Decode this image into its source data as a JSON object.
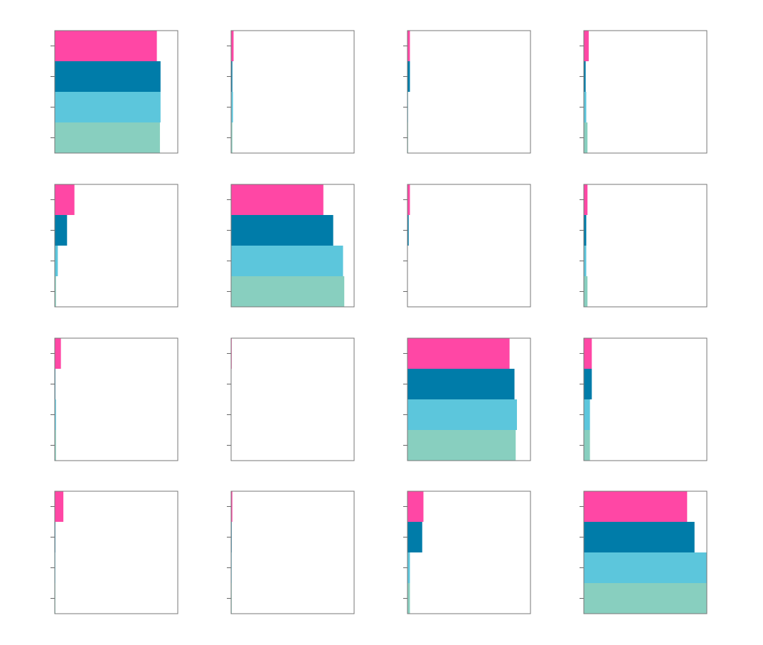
{
  "chart_data": [
    {
      "type": "bar",
      "orientation": "horizontal",
      "categories": [
        null,
        null,
        null,
        null
      ],
      "values": [
        0.83,
        0.86,
        0.86,
        0.855
      ],
      "colors": [
        "#ff47a5",
        "#007ca9",
        "#5cc6dc",
        "#88cfbf"
      ],
      "xlim": [
        0,
        1
      ]
    },
    {
      "type": "bar",
      "orientation": "horizontal",
      "categories": [
        null,
        null,
        null,
        null
      ],
      "values": [
        0.02,
        0.01,
        0.015,
        0.01
      ],
      "colors": [
        "#ff47a5",
        "#007ca9",
        "#5cc6dc",
        "#88cfbf"
      ],
      "xlim": [
        0,
        1
      ]
    },
    {
      "type": "bar",
      "orientation": "horizontal",
      "categories": [
        null,
        null,
        null,
        null
      ],
      "values": [
        0.02,
        0.02,
        0.005,
        0.005
      ],
      "colors": [
        "#ff47a5",
        "#007ca9",
        "#5cc6dc",
        "#88cfbf"
      ],
      "xlim": [
        0,
        1
      ]
    },
    {
      "type": "bar",
      "orientation": "horizontal",
      "categories": [
        null,
        null,
        null,
        null
      ],
      "values": [
        0.04,
        0.015,
        0.02,
        0.03
      ],
      "colors": [
        "#ff47a5",
        "#007ca9",
        "#5cc6dc",
        "#88cfbf"
      ],
      "xlim": [
        0,
        1
      ]
    },
    {
      "type": "bar",
      "orientation": "horizontal",
      "categories": [
        null,
        null,
        null,
        null
      ],
      "values": [
        0.16,
        0.1,
        0.025,
        0.01
      ],
      "colors": [
        "#ff47a5",
        "#007ca9",
        "#5cc6dc",
        "#88cfbf"
      ],
      "xlim": [
        0,
        1
      ]
    },
    {
      "type": "bar",
      "orientation": "horizontal",
      "categories": [
        null,
        null,
        null,
        null
      ],
      "values": [
        0.75,
        0.83,
        0.91,
        0.92
      ],
      "colors": [
        "#ff47a5",
        "#007ca9",
        "#5cc6dc",
        "#88cfbf"
      ],
      "xlim": [
        0,
        1
      ]
    },
    {
      "type": "bar",
      "orientation": "horizontal",
      "categories": [
        null,
        null,
        null,
        null
      ],
      "values": [
        0.02,
        0.01,
        0.002,
        0.002
      ],
      "colors": [
        "#ff47a5",
        "#007ca9",
        "#5cc6dc",
        "#88cfbf"
      ],
      "xlim": [
        0,
        1
      ]
    },
    {
      "type": "bar",
      "orientation": "horizontal",
      "categories": [
        null,
        null,
        null,
        null
      ],
      "values": [
        0.03,
        0.02,
        0.02,
        0.03
      ],
      "colors": [
        "#ff47a5",
        "#007ca9",
        "#5cc6dc",
        "#88cfbf"
      ],
      "xlim": [
        0,
        1
      ]
    },
    {
      "type": "bar",
      "orientation": "horizontal",
      "categories": [
        null,
        null,
        null,
        null
      ],
      "values": [
        0.05,
        0.005,
        0.01,
        0.01
      ],
      "colors": [
        "#ff47a5",
        "#007ca9",
        "#5cc6dc",
        "#88cfbf"
      ],
      "xlim": [
        0,
        1
      ]
    },
    {
      "type": "bar",
      "orientation": "horizontal",
      "categories": [
        null,
        null,
        null,
        null
      ],
      "values": [
        0.005,
        0.003,
        0.003,
        0.003
      ],
      "colors": [
        "#ff47a5",
        "#007ca9",
        "#5cc6dc",
        "#88cfbf"
      ],
      "xlim": [
        0,
        1
      ]
    },
    {
      "type": "bar",
      "orientation": "horizontal",
      "categories": [
        null,
        null,
        null,
        null
      ],
      "values": [
        0.83,
        0.87,
        0.89,
        0.88
      ],
      "colors": [
        "#ff47a5",
        "#007ca9",
        "#5cc6dc",
        "#88cfbf"
      ],
      "xlim": [
        0,
        1
      ]
    },
    {
      "type": "bar",
      "orientation": "horizontal",
      "categories": [
        null,
        null,
        null,
        null
      ],
      "values": [
        0.065,
        0.065,
        0.05,
        0.05
      ],
      "colors": [
        "#ff47a5",
        "#007ca9",
        "#5cc6dc",
        "#88cfbf"
      ],
      "xlim": [
        0,
        1
      ]
    },
    {
      "type": "bar",
      "orientation": "horizontal",
      "categories": [
        null,
        null,
        null,
        null
      ],
      "values": [
        0.07,
        0.005,
        0.005,
        0.005
      ],
      "colors": [
        "#ff47a5",
        "#007ca9",
        "#5cc6dc",
        "#88cfbf"
      ],
      "xlim": [
        0,
        1
      ]
    },
    {
      "type": "bar",
      "orientation": "horizontal",
      "categories": [
        null,
        null,
        null,
        null
      ],
      "values": [
        0.01,
        0.005,
        0.005,
        0.005
      ],
      "colors": [
        "#ff47a5",
        "#007ca9",
        "#5cc6dc",
        "#88cfbf"
      ],
      "xlim": [
        0,
        1
      ]
    },
    {
      "type": "bar",
      "orientation": "horizontal",
      "categories": [
        null,
        null,
        null,
        null
      ],
      "values": [
        0.13,
        0.12,
        0.02,
        0.02
      ],
      "colors": [
        "#ff47a5",
        "#007ca9",
        "#5cc6dc",
        "#88cfbf"
      ],
      "xlim": [
        0,
        1
      ]
    },
    {
      "type": "bar",
      "orientation": "horizontal",
      "categories": [
        null,
        null,
        null,
        null
      ],
      "values": [
        0.84,
        0.9,
        1.0,
        1.0
      ],
      "colors": [
        "#ff47a5",
        "#007ca9",
        "#5cc6dc",
        "#88cfbf"
      ],
      "xlim": [
        0,
        1
      ]
    }
  ]
}
